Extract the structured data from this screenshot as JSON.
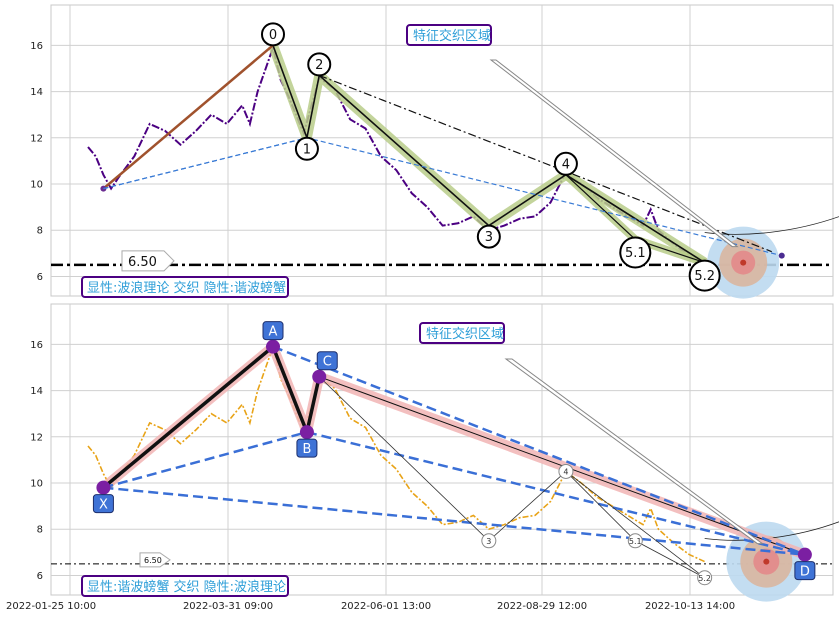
{
  "chart_data": [
    {
      "type": "line",
      "panel": "top",
      "ylim": [
        5.5,
        17.4
      ],
      "yticks": [
        6,
        8,
        10,
        12,
        14,
        16
      ],
      "grid": true,
      "price_series_color": "#4b0082",
      "price_series": [
        [
          0,
          11.6
        ],
        [
          0.5,
          11.2
        ],
        [
          1,
          10.4
        ],
        [
          1.5,
          9.8
        ],
        [
          2,
          10.3
        ],
        [
          3,
          11.2
        ],
        [
          4,
          12.6
        ],
        [
          5,
          12.3
        ],
        [
          6,
          11.7
        ],
        [
          7,
          12.3
        ],
        [
          8,
          13.0
        ],
        [
          9,
          12.6
        ],
        [
          10,
          13.4
        ],
        [
          10.5,
          12.6
        ],
        [
          11,
          14.0
        ],
        [
          12,
          15.9
        ],
        [
          12.5,
          14.5
        ],
        [
          13,
          13.8
        ],
        [
          14,
          12.2
        ],
        [
          15,
          14.6
        ],
        [
          16,
          14.1
        ],
        [
          17,
          12.8
        ],
        [
          18,
          12.4
        ],
        [
          19,
          11.2
        ],
        [
          20,
          10.6
        ],
        [
          21,
          9.6
        ],
        [
          22,
          9.0
        ],
        [
          23,
          8.2
        ],
        [
          24,
          8.3
        ],
        [
          25,
          8.6
        ],
        [
          26,
          8.0
        ],
        [
          27,
          8.2
        ],
        [
          28,
          8.5
        ],
        [
          29,
          8.6
        ],
        [
          30,
          9.2
        ],
        [
          31,
          10.5
        ],
        [
          32,
          10.0
        ],
        [
          33,
          9.4
        ],
        [
          34,
          9.0
        ],
        [
          35,
          8.6
        ],
        [
          36,
          8.2
        ],
        [
          36.5,
          8.9
        ],
        [
          37,
          8.0
        ],
        [
          38,
          7.4
        ],
        [
          39,
          6.9
        ],
        [
          40,
          6.6
        ]
      ],
      "waves": [
        {
          "label": "0",
          "x": 12,
          "y": 16.0
        },
        {
          "label": "1",
          "x": 14.2,
          "y": 12.0
        },
        {
          "label": "2",
          "x": 15,
          "y": 14.7
        },
        {
          "label": "3",
          "x": 26,
          "y": 8.2
        },
        {
          "label": "4",
          "x": 31,
          "y": 10.4
        },
        {
          "label": "5.1",
          "x": 35.5,
          "y": 7.6
        },
        {
          "label": "5.2",
          "x": 40,
          "y": 6.6
        }
      ],
      "start_point": {
        "x": 1,
        "y": 9.8
      },
      "end_point": {
        "x": 45,
        "y": 6.9
      },
      "target_zone": {
        "x": 42.5,
        "y": 6.6
      },
      "support_value": "6.50",
      "support_y": 6.5,
      "annotation_title": "特征交织区域",
      "legend_text": "显性:波浪理论 交织 隐性:谐波螃蟹"
    },
    {
      "type": "line",
      "panel": "bottom",
      "ylim": [
        5.5,
        17.4
      ],
      "yticks": [
        6,
        8,
        10,
        12,
        14,
        16
      ],
      "xticks": [
        "2022-01-25 10:00",
        "2022-03-31 09:00",
        "2022-06-01 13:00",
        "2022-08-29 12:00",
        "2022-10-13 14:00"
      ],
      "grid": true,
      "price_series_color": "#e8a317",
      "points": [
        {
          "label": "X",
          "x": 1,
          "y": 9.8
        },
        {
          "label": "A",
          "x": 12,
          "y": 15.9
        },
        {
          "label": "B",
          "x": 14.2,
          "y": 12.2
        },
        {
          "label": "C",
          "x": 15,
          "y": 14.6
        },
        {
          "label": "D",
          "x": 46.5,
          "y": 6.9
        }
      ],
      "waves": [
        {
          "label": "3",
          "x": 26,
          "y": 7.5
        },
        {
          "label": "4",
          "x": 31,
          "y": 10.5
        },
        {
          "label": "5.1",
          "x": 35.5,
          "y": 7.5
        },
        {
          "label": "5.2",
          "x": 40,
          "y": 5.9
        }
      ],
      "target_zone": {
        "x": 44,
        "y": 6.6
      },
      "support_value": "6.50",
      "support_y": 6.5,
      "annotation_title": "特征交织区域",
      "legend_text": "显性:谐波螃蟹 交织 隐性:波浪理论"
    }
  ]
}
